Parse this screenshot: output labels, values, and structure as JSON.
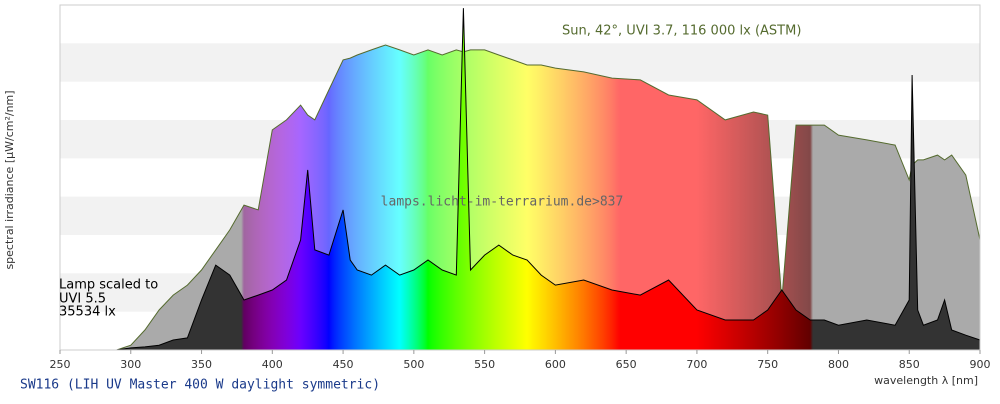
{
  "chart_data": {
    "type": "spectrum-area",
    "title": "SW116 (LIH UV Master 400 W daylight symmetric)",
    "x_label": "wavelength λ [nm]",
    "y_label": "spectral irradiance [µW/cm²/nm]",
    "watermark": "lamps.licht-im-terrarium.de>837",
    "lamp_label": [
      "Lamp scaled to",
      "UVI 5.5",
      "35534 lx"
    ],
    "xlim": [
      250,
      900
    ],
    "xticks": [
      250,
      300,
      350,
      400,
      450,
      500,
      550,
      600,
      650,
      700,
      750,
      800,
      850,
      900
    ],
    "ylim": [
      0,
      100
    ],
    "grid": "bands",
    "x": [
      290,
      300,
      310,
      320,
      330,
      340,
      350,
      360,
      370,
      380,
      390,
      400,
      410,
      420,
      425,
      430,
      440,
      450,
      455,
      460,
      470,
      480,
      490,
      500,
      510,
      520,
      530,
      535,
      540,
      550,
      560,
      570,
      580,
      590,
      600,
      620,
      640,
      660,
      680,
      700,
      720,
      740,
      750,
      760,
      770,
      780,
      790,
      800,
      820,
      840,
      850,
      852,
      856,
      860,
      870,
      875,
      880,
      890,
      900
    ],
    "series": [
      {
        "name": "Sun, 42°, UVI 3.7, 116 000 lx (ASTM)",
        "color": "#556b2f",
        "values": [
          0,
          1.4,
          5.8,
          11.6,
          15.9,
          18.8,
          23.2,
          29.0,
          34.8,
          42.0,
          40.6,
          63.8,
          66.7,
          71.0,
          68.1,
          66.7,
          75.4,
          84.1,
          84.6,
          85.5,
          87.0,
          88.4,
          87.0,
          85.5,
          87.0,
          85.5,
          87.0,
          86.4,
          87.0,
          87.0,
          85.5,
          84.1,
          82.6,
          82.6,
          81.7,
          80.6,
          78.8,
          78.3,
          73.9,
          72.5,
          66.7,
          69.0,
          68.1,
          14.5,
          65.2,
          65.2,
          65.2,
          62.3,
          60.9,
          59.4,
          49.3,
          53.6,
          55.1,
          55.1,
          56.5,
          55.1,
          56.5,
          50.7,
          31.9
        ]
      },
      {
        "color": "#000000",
        "values": [
          0,
          0.6,
          0.9,
          1.4,
          2.9,
          3.5,
          14.5,
          24.6,
          21.7,
          14.5,
          15.9,
          17.4,
          20.3,
          31.9,
          52.2,
          29.0,
          27.5,
          40.6,
          26.1,
          23.2,
          21.7,
          24.6,
          21.7,
          23.2,
          26.1,
          23.2,
          21.7,
          99.1,
          23.2,
          27.5,
          30.4,
          27.5,
          26.1,
          21.7,
          18.8,
          20.3,
          17.4,
          15.9,
          20.3,
          11.6,
          8.7,
          8.7,
          11.6,
          17.4,
          11.6,
          8.7,
          8.7,
          7.2,
          8.7,
          7.2,
          14.5,
          79.7,
          11.6,
          7.2,
          8.7,
          14.5,
          5.8,
          4.3,
          2.9
        ]
      }
    ]
  }
}
